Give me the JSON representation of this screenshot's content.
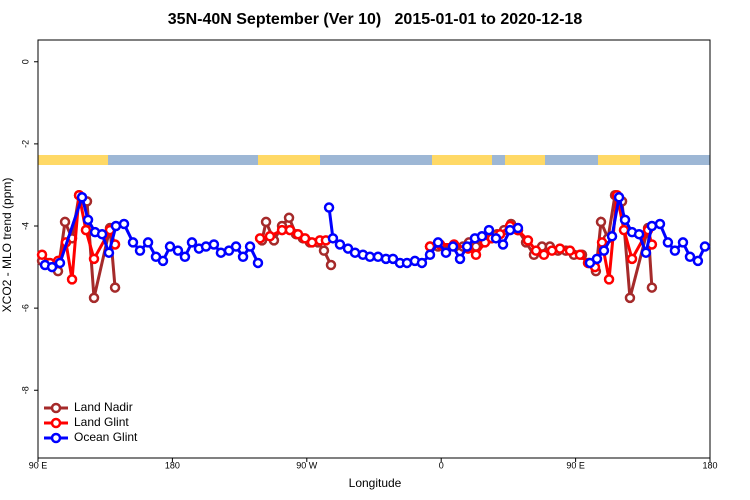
{
  "chart_data": {
    "type": "line",
    "title": "35N-40N September (Ver 10)   2015-01-01 to 2020-12-18",
    "xlabel": "Longitude",
    "ylabel": "XCO2 - MLO trend (ppm)",
    "xlim": [
      90,
      540
    ],
    "ylim": [
      -9.65,
      0.53
    ],
    "xticks": [
      {
        "value": 90,
        "label": "90 E"
      },
      180,
      {
        "value": 270,
        "label": "90 W"
      },
      {
        "value": 360,
        "label": "0"
      },
      {
        "value": 450,
        "label": "90 E"
      },
      {
        "value": 540,
        "label": "180"
      }
    ],
    "yticks": [
      0,
      -2,
      -4,
      -6,
      -8
    ],
    "legend": "bottom-left",
    "series": [
      {
        "name": "Land Nadir",
        "color": "#a52a2a",
        "x": [
          92.7,
          96.7,
          103.4,
          108.1,
          112.8,
          117.5,
          122.8,
          127.5,
          138.2,
          141.6,
          null,
          240,
          242.7,
          248,
          253.4,
          258.1,
          262.8,
          267.4,
          272.1,
          277.5,
          281.5,
          286.2,
          null,
          352.5,
          357.9,
          363.2,
          369.2,
          374.6,
          378.6,
          383.3,
          388,
          392.7,
          397.4,
          402.1,
          406.8,
          411.4,
          416.8,
          422.1,
          427.5,
          432.8,
          438.2,
          443.5,
          448.9,
          454.3,
          459,
          463.6,
          467,
          471.7,
          476.4,
          481.1,
          486.4,
          498.5,
          501.1
        ],
        "values": [
          -4.85,
          -4.9,
          -5.1,
          -3.9,
          -4.3,
          -3.25,
          -3.4,
          -5.75,
          -4.05,
          -5.5,
          null,
          -4.35,
          -3.9,
          -4.35,
          -4.0,
          -3.8,
          -4.2,
          -4.3,
          -4.4,
          -4.4,
          -4.6,
          -4.95,
          null,
          -4.5,
          -4.5,
          -4.6,
          -4.5,
          -4.5,
          -4.4,
          -4.5,
          -4.4,
          -4.3,
          -4.2,
          -4.1,
          -3.95,
          -4.1,
          -4.4,
          -4.7,
          -4.5,
          -4.5,
          -4.6,
          -4.6,
          -4.7,
          -4.7,
          -4.9,
          -5.1,
          -3.9,
          -4.3,
          -3.25,
          -3.4,
          -5.75,
          -4.05,
          -5.5
        ]
      },
      {
        "name": "Land Glint",
        "color": "#ff0000",
        "x": [
          92.7,
          98,
          103.4,
          108.7,
          112.8,
          117.5,
          122.1,
          127.5,
          138.2,
          141.6,
          null,
          238.7,
          245.3,
          253.4,
          258.7,
          264.1,
          268.8,
          273.5,
          278.8,
          282.8,
          null,
          352.5,
          359.2,
          368.6,
          378,
          383.3,
          389.3,
          394,
          399.4,
          406.1,
          411.4,
          418.1,
          423.5,
          428.8,
          434.2,
          439.5,
          446.2,
          452.9,
          458.3,
          463,
          467.7,
          472.4,
          477.7,
          482.4,
          487.8,
          498.5,
          501.1
        ],
        "values": [
          -4.7,
          -4.9,
          -4.85,
          -4.4,
          -5.3,
          -3.25,
          -4.1,
          -4.8,
          -4.1,
          -4.45,
          null,
          -4.3,
          -4.25,
          -4.1,
          -4.1,
          -4.2,
          -4.3,
          -4.4,
          -4.35,
          -4.35,
          null,
          -4.5,
          -4.45,
          -4.45,
          -4.55,
          -4.7,
          -4.4,
          -4.3,
          -4.2,
          -4.0,
          -4.1,
          -4.35,
          -4.6,
          -4.7,
          -4.6,
          -4.55,
          -4.6,
          -4.7,
          -4.9,
          -5.0,
          -4.4,
          -5.3,
          -3.25,
          -4.1,
          -4.8,
          -4.1,
          -4.45
        ]
      },
      {
        "name": "Ocean Glint",
        "color": "#0000ff",
        "x": [
          94.7,
          99.4,
          104.7,
          119.5,
          123.5,
          128.2,
          132.9,
          137.5,
          142.2,
          147.6,
          153.6,
          158.3,
          163.7,
          169,
          173.7,
          178.4,
          183.7,
          188.4,
          193.1,
          197.8,
          202.5,
          207.8,
          212.5,
          217.9,
          222.6,
          227.3,
          232,
          237.3,
          null,
          284.9,
          287.5,
          292.2,
          297.6,
          302.3,
          307.6,
          312.3,
          317.7,
          323,
          327.7,
          332.4,
          337.1,
          342.4,
          347.1,
          352.5,
          357.9,
          363.2,
          367.9,
          372.6,
          377.3,
          382.6,
          387.3,
          392,
          396.7,
          401.4,
          406.1,
          411.4,
          null,
          459.6,
          464.3,
          469,
          474.4,
          479.1,
          483.1,
          487.8,
          492.5,
          497.1,
          501.1,
          506.5,
          511.8,
          516.5,
          521.9,
          526.6,
          531.9,
          536.6
        ],
        "values": [
          -4.95,
          -5.0,
          -4.9,
          -3.3,
          -3.85,
          -4.15,
          -4.2,
          -4.65,
          -4.0,
          -3.95,
          -4.4,
          -4.6,
          -4.4,
          -4.75,
          -4.85,
          -4.5,
          -4.6,
          -4.75,
          -4.4,
          -4.55,
          -4.5,
          -4.45,
          -4.65,
          -4.6,
          -4.5,
          -4.75,
          -4.5,
          -4.9,
          null,
          -3.55,
          -4.3,
          -4.45,
          -4.55,
          -4.65,
          -4.7,
          -4.75,
          -4.75,
          -4.8,
          -4.8,
          -4.9,
          -4.9,
          -4.85,
          -4.9,
          -4.7,
          -4.4,
          -4.65,
          -4.5,
          -4.8,
          -4.5,
          -4.3,
          -4.25,
          -4.1,
          -4.3,
          -4.45,
          -4.1,
          -4.05,
          null,
          -4.9,
          -4.8,
          -4.6,
          -4.25,
          -3.3,
          -3.85,
          -4.15,
          -4.2,
          -4.65,
          -4.0,
          -3.95,
          -4.4,
          -4.6,
          -4.4,
          -4.75,
          -4.85,
          -4.5
        ]
      }
    ]
  }
}
